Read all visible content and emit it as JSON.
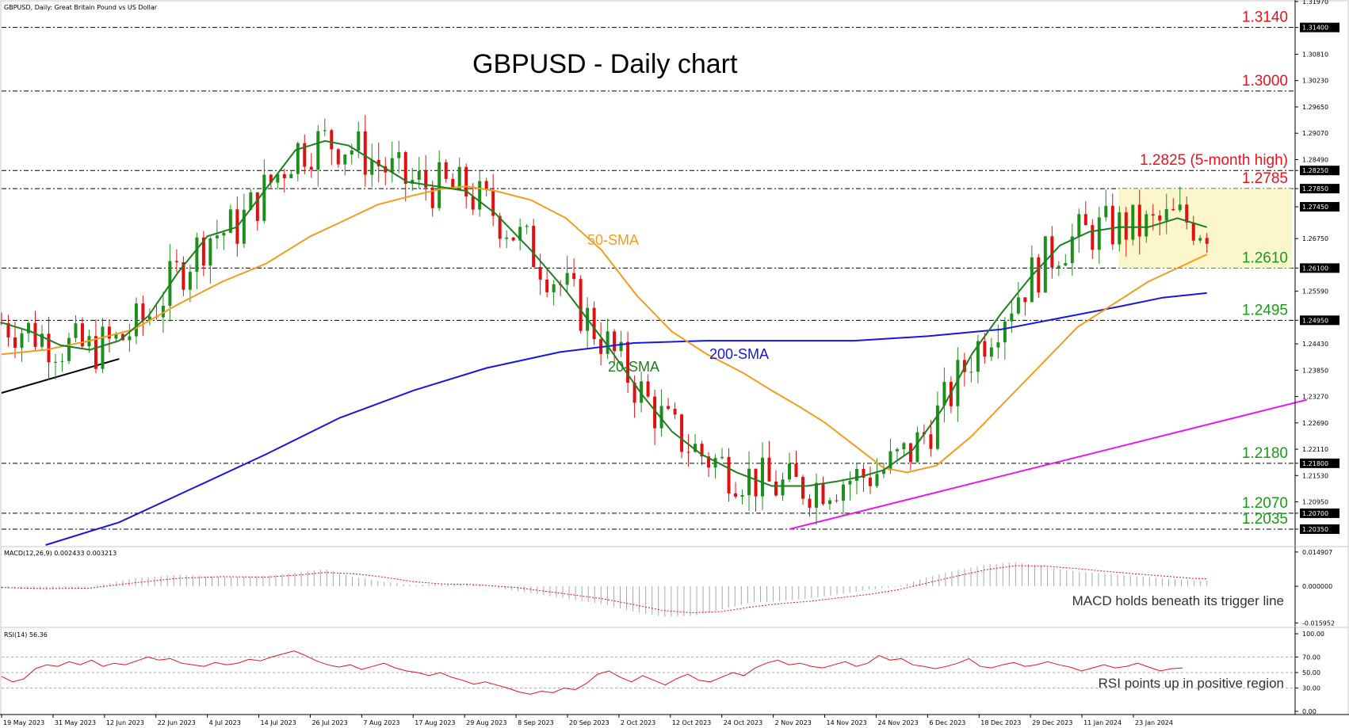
{
  "header": {
    "symbol_line": "GBPUSD, Daily:  Great Britain Pound vs US Dollar"
  },
  "chart_data": {
    "type": "line",
    "title": "GBPUSD - Daily chart",
    "price_axis": {
      "range": [
        1.2,
        1.3197
      ],
      "ticks": [
        "1.31970",
        "1.31400",
        "1.30810",
        "1.30230",
        "1.29650",
        "1.29070",
        "1.28490",
        "1.28250",
        "1.27850",
        "1.27450",
        "1.26750",
        "1.26100",
        "1.25590",
        "1.24950",
        "1.24430",
        "1.23850",
        "1.23270",
        "1.22690",
        "1.22110",
        "1.21800",
        "1.21530",
        "1.20950",
        "1.20700",
        "1.20350"
      ],
      "highlighted_ticks": [
        "1.31400",
        "1.30000",
        "1.28250",
        "1.27850",
        "1.27450",
        "1.26100",
        "1.24950",
        "1.21800",
        "1.20700",
        "1.20350"
      ]
    },
    "x_axis_labels": [
      "19 May 2023",
      "31 May 2023",
      "12 Jun 2023",
      "22 Jun 2023",
      "4 Jul 2023",
      "14 Jul 2023",
      "26 Jul 2023",
      "7 Aug 2023",
      "17 Aug 2023",
      "29 Aug 2023",
      "8 Sep 2023",
      "20 Sep 2023",
      "2 Oct 2023",
      "12 Oct 2023",
      "24 Oct 2023",
      "2 Nov 2023",
      "14 Nov 2023",
      "24 Nov 2023",
      "6 Dec 2023",
      "18 Dec 2023",
      "29 Dec 2023",
      "11 Jan 2024",
      "23 Jan 2024"
    ],
    "levels": [
      {
        "value": 1.314,
        "label": "1.3140",
        "color": "#e8121b"
      },
      {
        "value": 1.3,
        "label": "1.3000",
        "color": "#e8121b"
      },
      {
        "value": 1.2825,
        "label": "1.2825 (5-month high)",
        "color": "#e8121b"
      },
      {
        "value": 1.2785,
        "label": "1.2785",
        "color": "#e8121b"
      },
      {
        "value": 1.261,
        "label": "1.2610",
        "color": "#1a9a1a"
      },
      {
        "value": 1.2495,
        "label": "1.2495",
        "color": "#1a9a1a"
      },
      {
        "value": 1.218,
        "label": "1.2180",
        "color": "#1a9a1a"
      },
      {
        "value": 1.207,
        "label": "1.2070",
        "color": "#1a9a1a"
      },
      {
        "value": 1.2035,
        "label": "1.2035",
        "color": "#1a9a1a"
      }
    ],
    "series": [
      {
        "name": "20-SMA",
        "color": "#1e7f1e"
      },
      {
        "name": "50-SMA",
        "color": "#f39c1f"
      },
      {
        "name": "200-SMA",
        "color": "#1717e0"
      }
    ],
    "sma20": [
      [
        0,
        1.249
      ],
      [
        10,
        1.247
      ],
      [
        20,
        1.244
      ],
      [
        30,
        1.243
      ],
      [
        40,
        1.245
      ],
      [
        50,
        1.2505
      ],
      [
        60,
        1.26
      ],
      [
        70,
        1.268
      ],
      [
        80,
        1.27
      ],
      [
        90,
        1.2785
      ],
      [
        100,
        1.287
      ],
      [
        110,
        1.289
      ],
      [
        118,
        1.288
      ],
      [
        128,
        1.284
      ],
      [
        138,
        1.28
      ],
      [
        148,
        1.279
      ],
      [
        158,
        1.278
      ],
      [
        168,
        1.273
      ],
      [
        180,
        1.265
      ],
      [
        192,
        1.256
      ],
      [
        206,
        1.244
      ],
      [
        218,
        1.233
      ],
      [
        228,
        1.225
      ],
      [
        238,
        1.22
      ],
      [
        250,
        1.216
      ],
      [
        262,
        1.213
      ],
      [
        274,
        1.213
      ],
      [
        284,
        1.214
      ],
      [
        292,
        1.215
      ],
      [
        300,
        1.2165
      ],
      [
        310,
        1.221
      ],
      [
        320,
        1.23
      ],
      [
        330,
        1.242
      ],
      [
        340,
        1.251
      ],
      [
        350,
        1.259
      ],
      [
        360,
        1.266
      ],
      [
        370,
        1.269
      ],
      [
        380,
        1.27
      ],
      [
        390,
        1.27
      ],
      [
        400,
        1.272
      ],
      [
        410,
        1.27
      ]
    ],
    "sma50": [
      [
        0,
        1.242
      ],
      [
        15,
        1.243
      ],
      [
        30,
        1.245
      ],
      [
        45,
        1.2475
      ],
      [
        60,
        1.253
      ],
      [
        75,
        1.258
      ],
      [
        90,
        1.262
      ],
      [
        105,
        1.268
      ],
      [
        115,
        1.271
      ],
      [
        128,
        1.275
      ],
      [
        140,
        1.277
      ],
      [
        150,
        1.2785
      ],
      [
        158,
        1.279
      ],
      [
        168,
        1.278
      ],
      [
        180,
        1.276
      ],
      [
        192,
        1.272
      ],
      [
        204,
        1.265
      ],
      [
        216,
        1.255
      ],
      [
        228,
        1.247
      ],
      [
        240,
        1.242
      ],
      [
        252,
        1.238
      ],
      [
        262,
        1.234
      ],
      [
        270,
        1.231
      ],
      [
        280,
        1.227
      ],
      [
        290,
        1.222
      ],
      [
        300,
        1.217
      ],
      [
        308,
        1.216
      ],
      [
        318,
        1.2175
      ],
      [
        330,
        1.224
      ],
      [
        342,
        1.232
      ],
      [
        354,
        1.24
      ],
      [
        366,
        1.248
      ],
      [
        378,
        1.253
      ],
      [
        390,
        1.258
      ],
      [
        400,
        1.261
      ],
      [
        410,
        1.264
      ]
    ],
    "sma200": [
      [
        15,
        1.2
      ],
      [
        40,
        1.205
      ],
      [
        65,
        1.2125
      ],
      [
        90,
        1.22
      ],
      [
        115,
        1.228
      ],
      [
        140,
        1.234
      ],
      [
        165,
        1.239
      ],
      [
        190,
        1.2425
      ],
      [
        215,
        1.2445
      ],
      [
        240,
        1.245
      ],
      [
        265,
        1.245
      ],
      [
        290,
        1.245
      ],
      [
        315,
        1.246
      ],
      [
        340,
        1.2475
      ],
      [
        360,
        1.25
      ],
      [
        380,
        1.2525
      ],
      [
        395,
        1.2545
      ],
      [
        410,
        1.2555
      ]
    ],
    "macd": {
      "label": "MACD(12,26,9) 0.002433 0.003213",
      "ticks": [
        "0.014907",
        "0.000000",
        "-0.015952"
      ],
      "range": [
        -0.0165,
        0.0152
      ],
      "bars": [
        [
          0,
          -0.001
        ],
        [
          15,
          -0.0015
        ],
        [
          30,
          -0.0002
        ],
        [
          45,
          0.0035
        ],
        [
          60,
          0.005
        ],
        [
          75,
          0.004
        ],
        [
          90,
          0.0045
        ],
        [
          100,
          0.006
        ],
        [
          110,
          0.0075
        ],
        [
          120,
          0.004
        ],
        [
          130,
          0.002
        ],
        [
          140,
          0.0005
        ],
        [
          150,
          0.0012
        ],
        [
          160,
          0.001
        ],
        [
          175,
          -0.002
        ],
        [
          190,
          -0.005
        ],
        [
          205,
          -0.008
        ],
        [
          215,
          -0.011
        ],
        [
          225,
          -0.0132
        ],
        [
          235,
          -0.013
        ],
        [
          245,
          -0.01
        ],
        [
          255,
          -0.007
        ],
        [
          265,
          -0.0065
        ],
        [
          275,
          -0.0052
        ],
        [
          285,
          -0.0035
        ],
        [
          295,
          -0.0015
        ],
        [
          305,
          0.0
        ],
        [
          315,
          0.004
        ],
        [
          325,
          0.007
        ],
        [
          335,
          0.0095
        ],
        [
          345,
          0.0105
        ],
        [
          355,
          0.0085
        ],
        [
          365,
          0.0065
        ],
        [
          375,
          0.0055
        ],
        [
          385,
          0.0045
        ],
        [
          395,
          0.0035
        ],
        [
          405,
          0.0025
        ],
        [
          410,
          0.0024
        ]
      ],
      "signal": [
        [
          0,
          -0.0005
        ],
        [
          15,
          -0.001
        ],
        [
          30,
          -0.0008
        ],
        [
          45,
          0.0015
        ],
        [
          60,
          0.0035
        ],
        [
          75,
          0.0042
        ],
        [
          90,
          0.004
        ],
        [
          100,
          0.0048
        ],
        [
          110,
          0.006
        ],
        [
          120,
          0.0055
        ],
        [
          130,
          0.004
        ],
        [
          140,
          0.002
        ],
        [
          150,
          0.001
        ],
        [
          160,
          0.0008
        ],
        [
          175,
          -0.0005
        ],
        [
          190,
          -0.003
        ],
        [
          205,
          -0.0055
        ],
        [
          215,
          -0.008
        ],
        [
          225,
          -0.0105
        ],
        [
          235,
          -0.0115
        ],
        [
          245,
          -0.011
        ],
        [
          255,
          -0.009
        ],
        [
          265,
          -0.0075
        ],
        [
          275,
          -0.0065
        ],
        [
          285,
          -0.005
        ],
        [
          295,
          -0.0035
        ],
        [
          305,
          -0.0015
        ],
        [
          315,
          0.0015
        ],
        [
          325,
          0.0045
        ],
        [
          335,
          0.0072
        ],
        [
          345,
          0.009
        ],
        [
          355,
          0.0088
        ],
        [
          365,
          0.0078
        ],
        [
          375,
          0.0066
        ],
        [
          385,
          0.0055
        ],
        [
          395,
          0.0045
        ],
        [
          405,
          0.0035
        ],
        [
          410,
          0.0032
        ]
      ],
      "annotation": "MACD holds beneath its trigger line"
    },
    "rsi": {
      "label": "RSI(14) 56.36",
      "ticks": [
        "100.00",
        "70.00",
        "50.00",
        "30.00",
        "0.00"
      ],
      "range": [
        0,
        100
      ],
      "values": [
        [
          0,
          45
        ],
        [
          6,
          38
        ],
        [
          12,
          42
        ],
        [
          18,
          55
        ],
        [
          24,
          60
        ],
        [
          30,
          58
        ],
        [
          36,
          64
        ],
        [
          42,
          60
        ],
        [
          48,
          66
        ],
        [
          54,
          58
        ],
        [
          60,
          62
        ],
        [
          66,
          60
        ],
        [
          72,
          65
        ],
        [
          78,
          70
        ],
        [
          84,
          66
        ],
        [
          90,
          68
        ],
        [
          96,
          62
        ],
        [
          102,
          60
        ],
        [
          108,
          58
        ],
        [
          114,
          63
        ],
        [
          120,
          60
        ],
        [
          126,
          62
        ],
        [
          132,
          67
        ],
        [
          138,
          65
        ],
        [
          144,
          70
        ],
        [
          150,
          74
        ],
        [
          156,
          78
        ],
        [
          162,
          72
        ],
        [
          168,
          65
        ],
        [
          174,
          60
        ],
        [
          180,
          57
        ],
        [
          186,
          60
        ],
        [
          192,
          54
        ],
        [
          198,
          58
        ],
        [
          204,
          62
        ],
        [
          210,
          56
        ],
        [
          216,
          52
        ],
        [
          222,
          50
        ],
        [
          228,
          46
        ],
        [
          234,
          50
        ],
        [
          240,
          44
        ],
        [
          246,
          40
        ],
        [
          252,
          35
        ],
        [
          258,
          38
        ],
        [
          264,
          34
        ],
        [
          270,
          30
        ],
        [
          276,
          25
        ],
        [
          282,
          22
        ],
        [
          288,
          26
        ],
        [
          294,
          24
        ],
        [
          300,
          30
        ],
        [
          306,
          28
        ],
        [
          312,
          36
        ],
        [
          318,
          48
        ],
        [
          324,
          52
        ],
        [
          330,
          44
        ],
        [
          336,
          38
        ],
        [
          342,
          46
        ],
        [
          348,
          40
        ],
        [
          354,
          34
        ],
        [
          360,
          42
        ],
        [
          366,
          48
        ],
        [
          372,
          40
        ],
        [
          378,
          38
        ],
        [
          384,
          44
        ],
        [
          390,
          50
        ],
        [
          396,
          46
        ],
        [
          402,
          56
        ],
        [
          408,
          62
        ],
        [
          414,
          66
        ],
        [
          420,
          60
        ],
        [
          426,
          62
        ],
        [
          432,
          58
        ],
        [
          438,
          56
        ],
        [
          444,
          60
        ],
        [
          450,
          64
        ],
        [
          456,
          58
        ],
        [
          462,
          62
        ],
        [
          468,
          72
        ],
        [
          474,
          66
        ],
        [
          480,
          68
        ],
        [
          486,
          60
        ],
        [
          492,
          58
        ],
        [
          498,
          55
        ],
        [
          504,
          58
        ],
        [
          510,
          62
        ],
        [
          516,
          68
        ],
        [
          522,
          58
        ],
        [
          528,
          56
        ],
        [
          534,
          60
        ],
        [
          540,
          63
        ],
        [
          546,
          58
        ],
        [
          552,
          60
        ],
        [
          558,
          64
        ],
        [
          564,
          60
        ],
        [
          570,
          57
        ],
        [
          576,
          52
        ],
        [
          582,
          56
        ],
        [
          588,
          60
        ],
        [
          594,
          56
        ],
        [
          600,
          58
        ],
        [
          606,
          62
        ],
        [
          612,
          57
        ],
        [
          618,
          52
        ],
        [
          624,
          55
        ],
        [
          630,
          56
        ]
      ],
      "annotation": "RSI points up in positive region"
    }
  }
}
